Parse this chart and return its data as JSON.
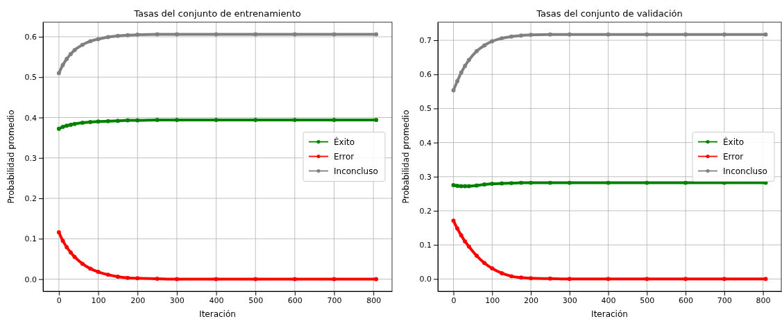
{
  "chart_data": [
    {
      "type": "line",
      "title": "Tasas del conjunto de entrenamiento",
      "xlabel": "Iteración",
      "ylabel": "Probabilidad promedio",
      "x": [
        0,
        10,
        20,
        30,
        40,
        60,
        80,
        100,
        125,
        150,
        175,
        200,
        250,
        300,
        400,
        500,
        600,
        700,
        807
      ],
      "xlim": [
        -40.35,
        847.35
      ],
      "xticks": [
        0,
        100,
        200,
        300,
        400,
        500,
        600,
        700,
        800
      ],
      "ylim": [
        -0.03,
        0.636
      ],
      "yticks": [
        {
          "value": 0,
          "label": "0.0"
        },
        0.1,
        0.2,
        0.3,
        0.4,
        0.5,
        0.6
      ],
      "grid": true,
      "legend": "right",
      "marker": "circle",
      "line_style": "solid",
      "series": [
        {
          "name": "Éxito",
          "color": "#008000",
          "values": [
            0.372,
            0.377,
            0.38,
            0.382,
            0.384,
            0.387,
            0.389,
            0.39,
            0.391,
            0.392,
            0.393,
            0.393,
            0.394,
            0.394,
            0.394,
            0.394,
            0.394,
            0.394,
            0.394
          ]
        },
        {
          "name": "Error",
          "color": "#ff0000",
          "values": [
            0.116,
            0.095,
            0.079,
            0.066,
            0.055,
            0.038,
            0.026,
            0.018,
            0.011,
            0.006,
            0.003,
            0.002,
            0.001,
            0,
            0,
            0,
            0,
            0,
            0
          ]
        },
        {
          "name": "Inconcluso",
          "color": "#808080",
          "values": [
            0.51,
            0.53,
            0.545,
            0.557,
            0.567,
            0.58,
            0.589,
            0.594,
            0.599,
            0.602,
            0.604,
            0.605,
            0.606,
            0.606,
            0.606,
            0.606,
            0.606,
            0.606,
            0.606
          ]
        }
      ]
    },
    {
      "type": "line",
      "title": "Tasas del conjunto de validación",
      "xlabel": "Iteración",
      "ylabel": "Probabilidad promedio",
      "x": [
        0,
        10,
        20,
        30,
        40,
        60,
        80,
        100,
        125,
        150,
        175,
        200,
        250,
        300,
        400,
        500,
        600,
        700,
        807
      ],
      "xlim": [
        -40.35,
        847.35
      ],
      "xticks": [
        0,
        100,
        200,
        300,
        400,
        500,
        600,
        700,
        800
      ],
      "ylim": [
        -0.036,
        0.753
      ],
      "yticks": [
        {
          "value": 0,
          "label": "0.0"
        },
        0.1,
        0.2,
        0.3,
        0.4,
        0.5,
        0.6,
        0.7
      ],
      "grid": true,
      "legend": "right",
      "marker": "circle",
      "line_style": "solid",
      "series": [
        {
          "name": "Éxito",
          "color": "#008000",
          "values": [
            0.275,
            0.273,
            0.272,
            0.272,
            0.272,
            0.274,
            0.277,
            0.279,
            0.28,
            0.281,
            0.282,
            0.282,
            0.282,
            0.282,
            0.282,
            0.282,
            0.282,
            0.282,
            0.282
          ]
        },
        {
          "name": "Error",
          "color": "#ff0000",
          "values": [
            0.171,
            0.148,
            0.128,
            0.11,
            0.095,
            0.068,
            0.047,
            0.031,
            0.017,
            0.008,
            0.004,
            0.002,
            0.001,
            0,
            0,
            0,
            0,
            0,
            0
          ]
        },
        {
          "name": "Inconcluso",
          "color": "#808080",
          "values": [
            0.553,
            0.58,
            0.605,
            0.625,
            0.642,
            0.668,
            0.685,
            0.697,
            0.706,
            0.711,
            0.714,
            0.716,
            0.717,
            0.717,
            0.717,
            0.717,
            0.717,
            0.717,
            0.717
          ]
        }
      ]
    }
  ]
}
